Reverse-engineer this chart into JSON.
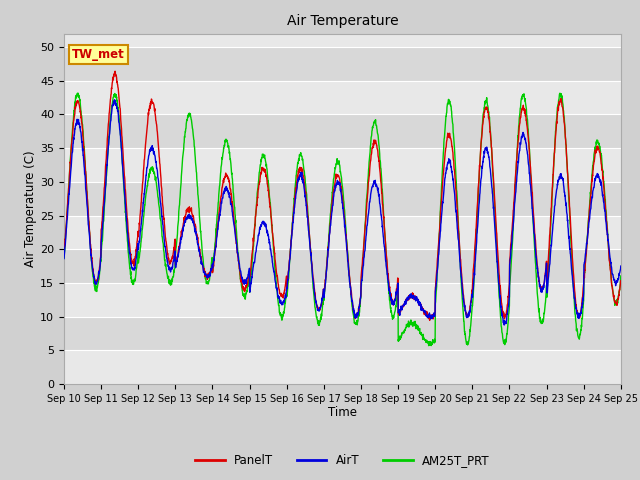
{
  "title": "Air Temperature",
  "xlabel": "Time",
  "ylabel": "Air Temperature (C)",
  "ylim": [
    0,
    52
  ],
  "yticks": [
    0,
    5,
    10,
    15,
    20,
    25,
    30,
    35,
    40,
    45,
    50
  ],
  "fig_bg": "#d0d0d0",
  "axes_bg": "#e8e8e8",
  "band_color_light": "#e8e8e8",
  "band_color_dark": "#d8d8d8",
  "annotation_text": "TW_met",
  "annotation_color": "#cc0000",
  "annotation_bg": "#ffff99",
  "annotation_border": "#cc8800",
  "legend_labels": [
    "PanelT",
    "AirT",
    "AM25T_PRT"
  ],
  "legend_colors": [
    "#dd0000",
    "#0000dd",
    "#00cc00"
  ],
  "line_width": 1.0,
  "n_days": 15,
  "day_labels": [
    "Sep 10",
    "Sep 11",
    "Sep 12",
    "Sep 13",
    "Sep 14",
    "Sep 15",
    "Sep 16",
    "Sep 17",
    "Sep 18",
    "Sep 19",
    "Sep 20",
    "Sep 21",
    "Sep 22",
    "Sep 23",
    "Sep 24",
    "Sep 25"
  ],
  "panel_T_peaks": [
    42,
    46,
    42,
    26,
    31,
    32,
    32,
    31,
    36,
    13,
    37,
    41,
    41,
    42,
    35,
    12
  ],
  "panel_T_troughs": [
    15,
    18,
    18,
    16,
    14,
    13,
    11,
    10,
    12,
    10,
    10,
    10,
    14,
    10,
    12,
    12
  ],
  "air_T_peaks": [
    39,
    42,
    35,
    25,
    29,
    24,
    31,
    30,
    30,
    13,
    33,
    35,
    37,
    31,
    31,
    12
  ],
  "air_T_troughs": [
    15,
    17,
    17,
    16,
    15,
    12,
    11,
    10,
    12,
    10,
    10,
    9,
    14,
    10,
    15,
    12
  ],
  "am25_T_peaks": [
    43,
    43,
    32,
    40,
    36,
    34,
    34,
    33,
    39,
    9,
    42,
    42,
    43,
    43,
    36,
    12
  ],
  "am25_T_troughs": [
    14,
    15,
    15,
    15,
    13,
    10,
    9,
    9,
    10,
    6,
    6,
    6,
    9,
    7,
    12,
    12
  ]
}
